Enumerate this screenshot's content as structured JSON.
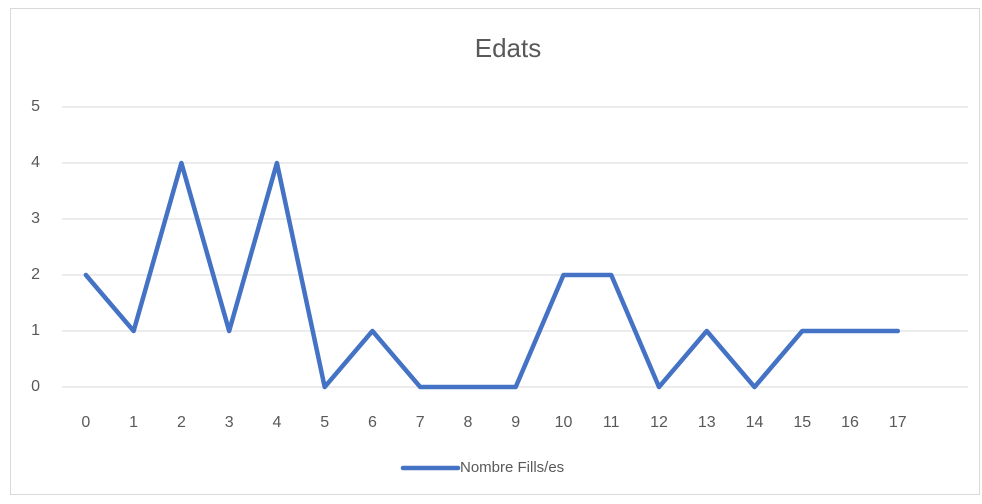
{
  "chart_data": {
    "type": "line",
    "title": "Edats",
    "categories": [
      "0",
      "1",
      "2",
      "3",
      "4",
      "5",
      "6",
      "7",
      "8",
      "9",
      "10",
      "11",
      "12",
      "13",
      "14",
      "15",
      "16",
      "17"
    ],
    "series": [
      {
        "name": "Nombre Fills/es",
        "color": "#4472c4",
        "values": [
          2,
          1,
          4,
          1,
          4,
          0,
          1,
          0,
          0,
          0,
          2,
          2,
          0,
          1,
          0,
          1,
          1,
          1
        ]
      }
    ],
    "ylim": [
      0,
      5
    ],
    "yticks": [
      0,
      1,
      2,
      3,
      4,
      5
    ],
    "grid": true,
    "legend": "bottom"
  }
}
